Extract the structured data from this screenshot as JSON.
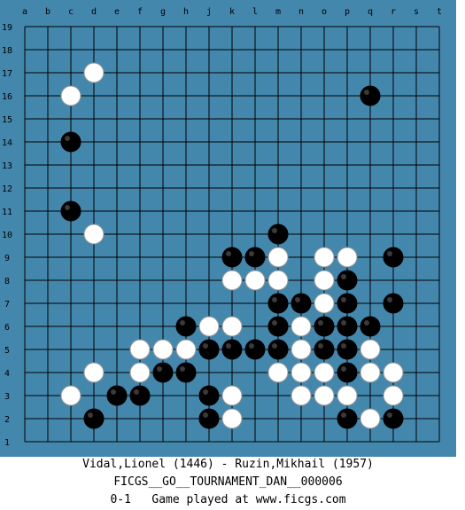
{
  "board": {
    "size": 19,
    "colors": {
      "panel": "#4487ad",
      "grid": "#000000",
      "label": "#000000",
      "black": "#000000",
      "white": "#ffffff"
    },
    "column_labels": [
      "a",
      "b",
      "c",
      "d",
      "e",
      "f",
      "g",
      "h",
      "j",
      "k",
      "l",
      "m",
      "n",
      "o",
      "p",
      "q",
      "r",
      "s",
      "t"
    ],
    "row_labels": [
      "19",
      "18",
      "17",
      "16",
      "15",
      "14",
      "13",
      "12",
      "11",
      "10",
      "9",
      "8",
      "7",
      "6",
      "5",
      "4",
      "3",
      "2",
      "1"
    ],
    "black_stones": [
      "q16",
      "c14",
      "c11",
      "m10",
      "k9",
      "l9",
      "r9",
      "p8",
      "m7",
      "n7",
      "p7",
      "r7",
      "h6",
      "m6",
      "o6",
      "p6",
      "q6",
      "j5",
      "k5",
      "l5",
      "m5",
      "o5",
      "p5",
      "g4",
      "h4",
      "p4",
      "e3",
      "f3",
      "j3",
      "d2",
      "j2",
      "p2",
      "r2"
    ],
    "white_stones": [
      "d17",
      "c16",
      "d10",
      "m9",
      "o9",
      "p9",
      "k8",
      "l8",
      "m8",
      "o8",
      "o7",
      "j6",
      "k6",
      "n6",
      "f5",
      "g5",
      "h5",
      "n5",
      "q5",
      "d4",
      "f4",
      "m4",
      "n4",
      "o4",
      "q4",
      "r4",
      "c3",
      "k3",
      "n3",
      "o3",
      "p3",
      "r3",
      "k2",
      "q2"
    ]
  },
  "caption": {
    "players": "Vidal,Lionel (1446) - Ruzin,Mikhail (1957)",
    "tournament": "FICGS__GO__TOURNAMENT_DAN__000006",
    "result_line": "0-1   Game played at www.ficgs.com"
  }
}
